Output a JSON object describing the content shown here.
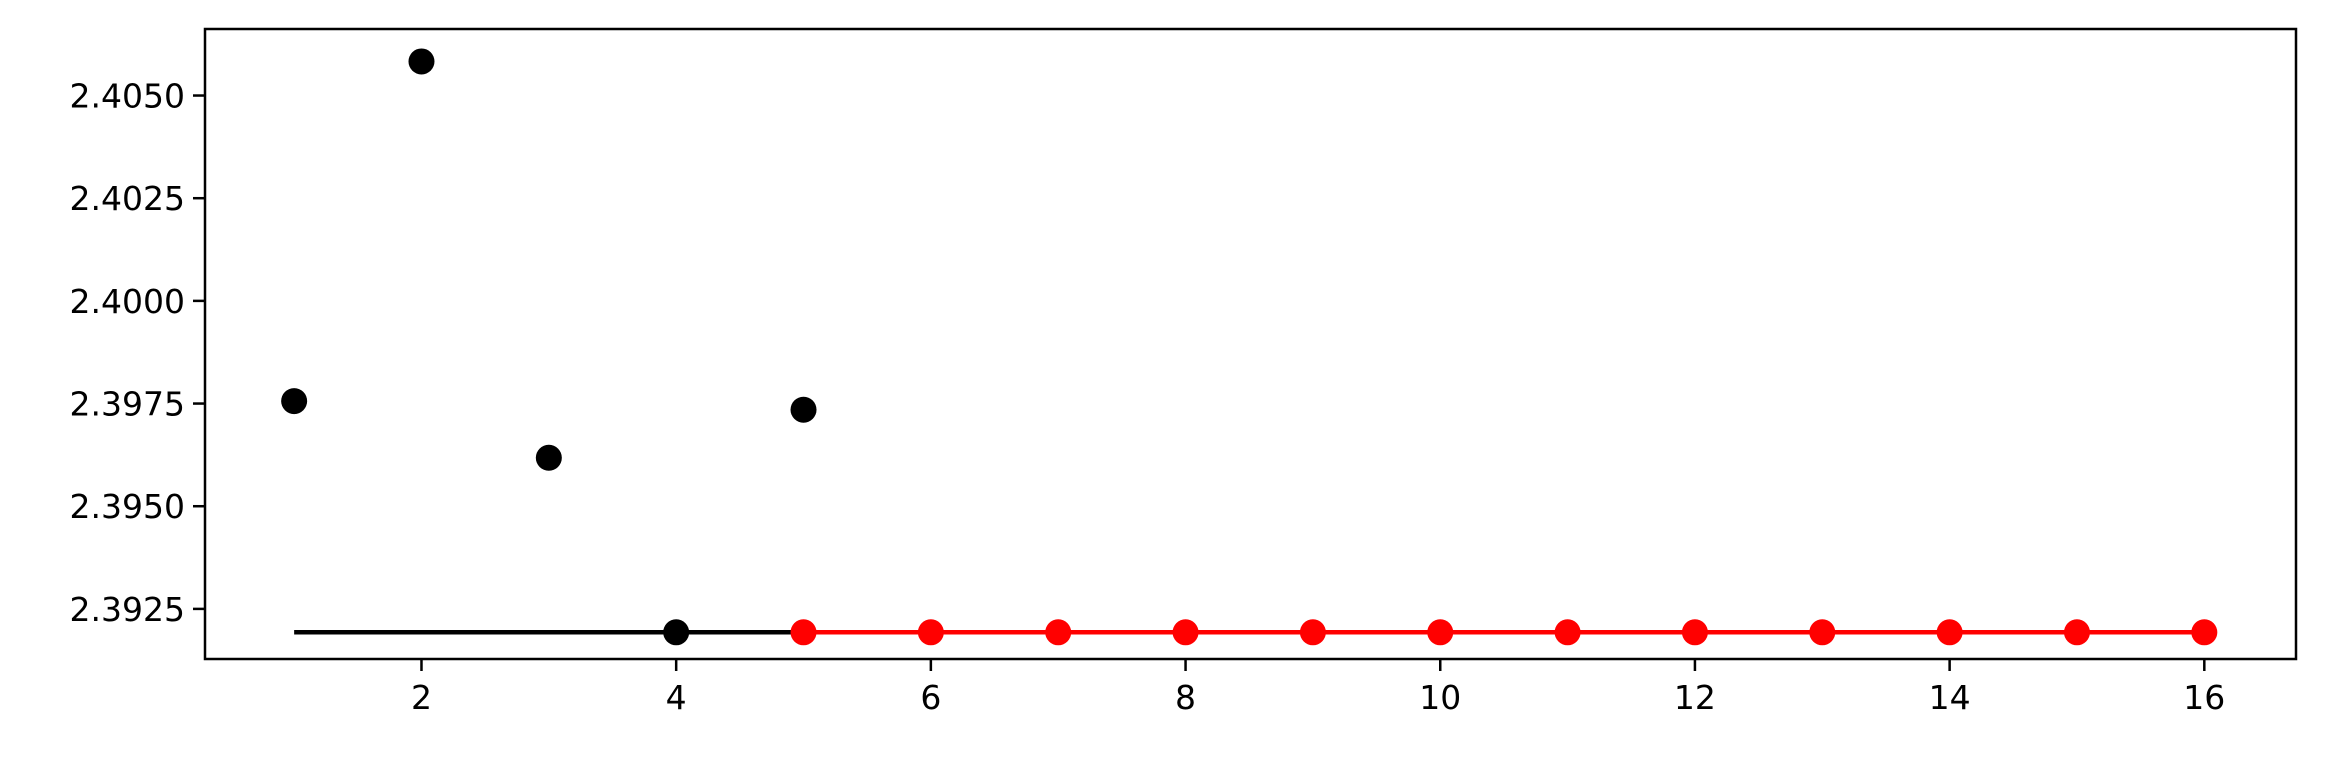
{
  "chart_data": {
    "type": "scatter",
    "title": "",
    "xlabel": "",
    "ylabel": "",
    "xlim": [
      0.3,
      16.72
    ],
    "ylim": [
      2.39128,
      2.40662
    ],
    "x_ticks": [
      2,
      4,
      6,
      8,
      10,
      12,
      14,
      16
    ],
    "y_ticks": [
      2.3925,
      2.395,
      2.3975,
      2.4,
      2.4025,
      2.405
    ],
    "x_tick_labels": [
      "2",
      "4",
      "6",
      "8",
      "10",
      12,
      "14",
      "16"
    ],
    "y_tick_labels": [
      "2.3925",
      "2.3950",
      "2.3975",
      "2.4000",
      "2.4025",
      "2.4050"
    ],
    "grid": false,
    "legend": "none",
    "series": [
      {
        "kind": "scatter",
        "color": "#000000",
        "points": [
          {
            "x": 1,
            "y": 2.39756
          },
          {
            "x": 2,
            "y": 2.40583
          },
          {
            "x": 3,
            "y": 2.39618
          },
          {
            "x": 4,
            "y": 2.39193
          },
          {
            "x": 5,
            "y": 2.39735
          }
        ]
      },
      {
        "kind": "line",
        "color": "#000000",
        "points": [
          {
            "x": 1,
            "y": 2.39193
          },
          {
            "x": 5,
            "y": 2.39193
          }
        ]
      },
      {
        "kind": "line-markers",
        "color": "#ff0000",
        "points": [
          {
            "x": 5,
            "y": 2.39193
          },
          {
            "x": 6,
            "y": 2.39193
          },
          {
            "x": 7,
            "y": 2.39193
          },
          {
            "x": 8,
            "y": 2.39193
          },
          {
            "x": 9,
            "y": 2.39193
          },
          {
            "x": 10,
            "y": 2.39193
          },
          {
            "x": 11,
            "y": 2.39193
          },
          {
            "x": 12,
            "y": 2.39193
          },
          {
            "x": 13,
            "y": 2.39193
          },
          {
            "x": 14,
            "y": 2.39193
          },
          {
            "x": 15,
            "y": 2.39193
          },
          {
            "x": 16,
            "y": 2.39193
          }
        ]
      }
    ]
  }
}
